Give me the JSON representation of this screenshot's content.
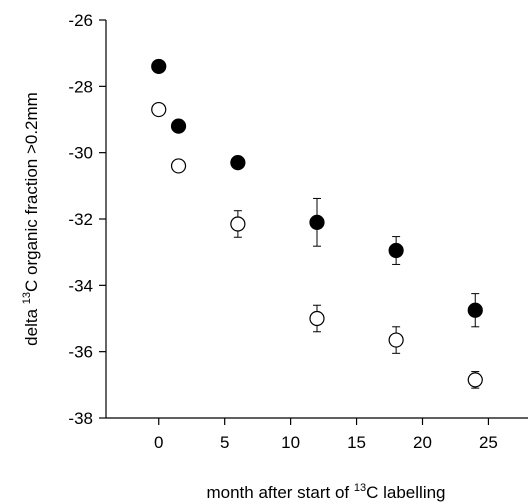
{
  "chart_data": {
    "type": "scatter",
    "xlabel_parts": [
      "month after start of ",
      "13",
      "C labelling"
    ],
    "ylabel_parts": [
      "delta ",
      "13",
      "C organic fraction >0.2mm"
    ],
    "xlim": [
      -4,
      28
    ],
    "ylim": [
      -38,
      -26
    ],
    "xticks": [
      0,
      5,
      10,
      15,
      20,
      25
    ],
    "yticks": [
      -38,
      -36,
      -34,
      -32,
      -30,
      -28,
      -26
    ],
    "grid": false,
    "series": [
      {
        "marker": "filled-circle",
        "color": "#000000",
        "points": [
          {
            "x": 0,
            "y": -27.4,
            "err": 0.12
          },
          {
            "x": 1.5,
            "y": -29.2,
            "err": 0.12
          },
          {
            "x": 6,
            "y": -30.3,
            "err": 0.12
          },
          {
            "x": 12,
            "y": -32.1,
            "err": 0.72
          },
          {
            "x": 18,
            "y": -32.95,
            "err": 0.42
          },
          {
            "x": 24,
            "y": -34.75,
            "err": 0.5
          }
        ]
      },
      {
        "marker": "open-circle",
        "color": "#000000",
        "points": [
          {
            "x": 0,
            "y": -28.7,
            "err": 0.1
          },
          {
            "x": 1.5,
            "y": -30.4,
            "err": 0.1
          },
          {
            "x": 6,
            "y": -32.15,
            "err": 0.4
          },
          {
            "x": 12,
            "y": -35.0,
            "err": 0.4
          },
          {
            "x": 18,
            "y": -35.65,
            "err": 0.4
          },
          {
            "x": 24,
            "y": -36.85,
            "err": 0.25
          }
        ]
      }
    ]
  }
}
